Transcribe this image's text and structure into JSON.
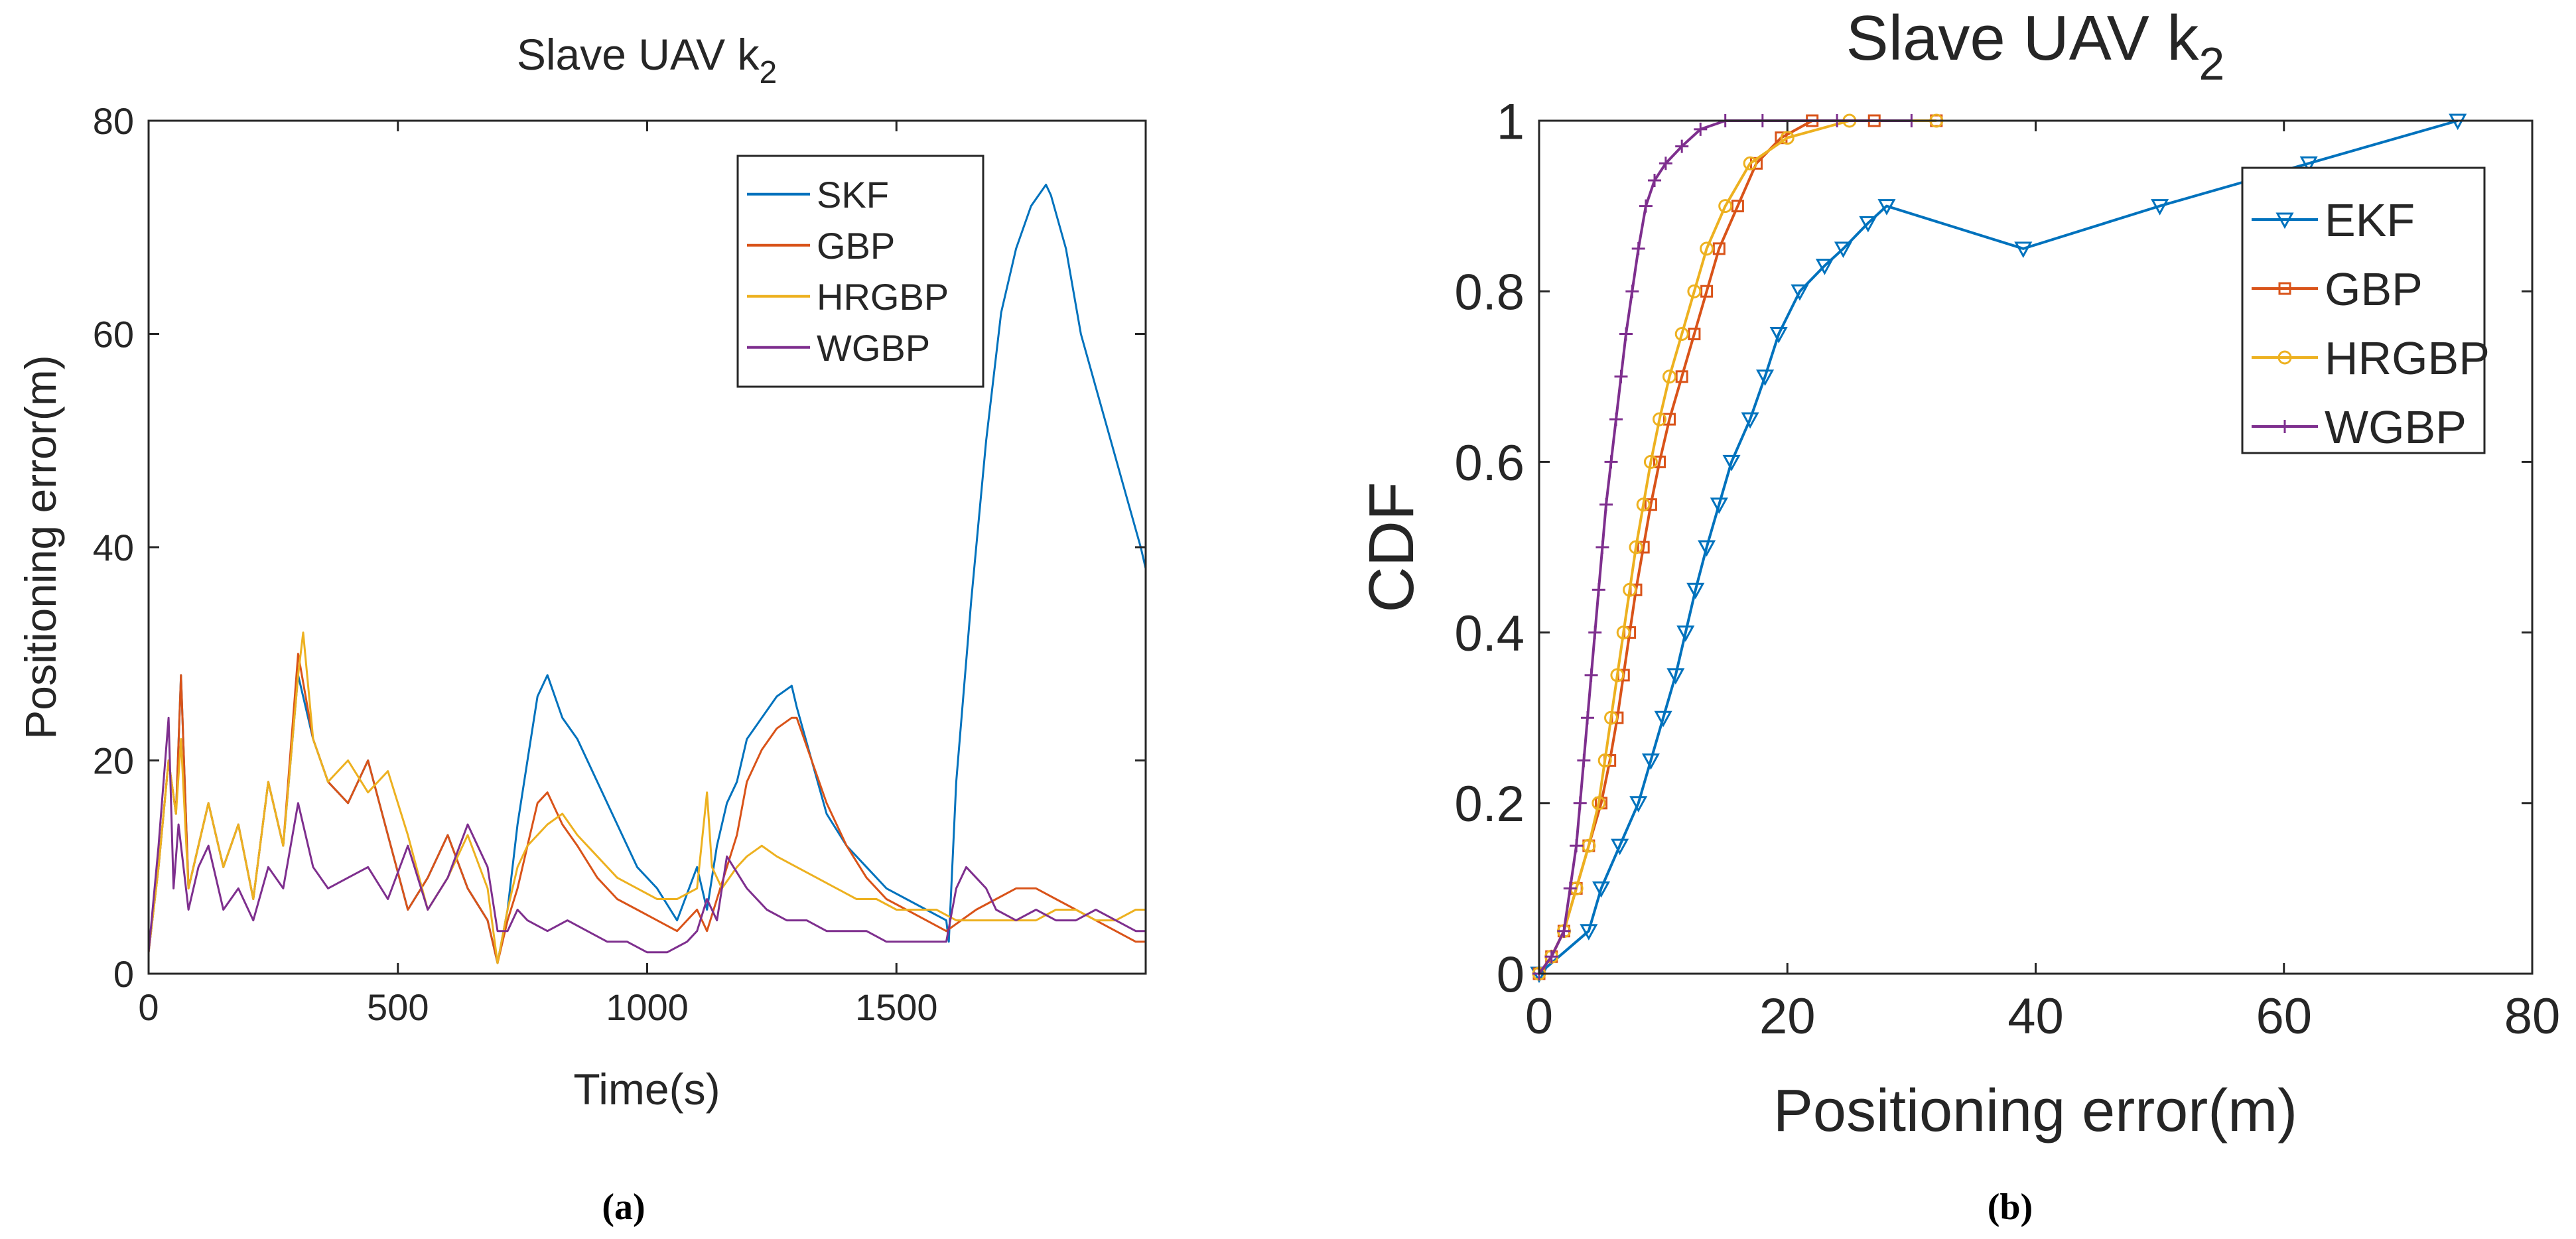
{
  "chart_data": [
    {
      "id": "a",
      "type": "line",
      "title": "Slave UAV k",
      "title_subscript": "2",
      "xlabel": "Time(s)",
      "ylabel": "Positioning error(m)",
      "xlim": [
        0,
        2000
      ],
      "ylim": [
        0,
        80
      ],
      "xticks": [
        0,
        500,
        1000,
        1500
      ],
      "yticks": [
        0,
        20,
        40,
        60,
        80
      ],
      "legend_position": "top-right",
      "caption": "(a)",
      "series": [
        {
          "name": "SKF",
          "color": "#0072BD",
          "x": [
            0,
            20,
            40,
            55,
            65,
            80,
            100,
            120,
            150,
            180,
            210,
            240,
            270,
            300,
            330,
            360,
            400,
            440,
            480,
            520,
            560,
            600,
            640,
            680,
            700,
            720,
            740,
            760,
            780,
            800,
            830,
            860,
            900,
            940,
            980,
            1020,
            1060,
            1100,
            1120,
            1140,
            1160,
            1180,
            1200,
            1230,
            1260,
            1290,
            1300,
            1330,
            1360,
            1400,
            1440,
            1480,
            1520,
            1560,
            1600,
            1605,
            1620,
            1650,
            1680,
            1710,
            1740,
            1770,
            1800,
            1810,
            1840,
            1870,
            1900,
            1930,
            1960,
            1990,
            2000
          ],
          "y": [
            2,
            10,
            20,
            15,
            28,
            8,
            12,
            16,
            10,
            14,
            7,
            18,
            12,
            28,
            22,
            18,
            16,
            20,
            13,
            6,
            9,
            13,
            8,
            5,
            1,
            6,
            14,
            20,
            26,
            28,
            24,
            22,
            18,
            14,
            10,
            8,
            5,
            10,
            6,
            12,
            16,
            18,
            22,
            24,
            26,
            27,
            25,
            20,
            15,
            12,
            10,
            8,
            7,
            6,
            5,
            3,
            18,
            35,
            50,
            62,
            68,
            72,
            74,
            73,
            68,
            60,
            55,
            50,
            45,
            40,
            38
          ]
        },
        {
          "name": "GBP",
          "color": "#D95319",
          "x": [
            0,
            20,
            40,
            55,
            65,
            80,
            100,
            120,
            150,
            180,
            210,
            240,
            270,
            300,
            330,
            360,
            400,
            440,
            480,
            520,
            560,
            600,
            640,
            680,
            700,
            720,
            740,
            760,
            780,
            800,
            830,
            860,
            900,
            940,
            980,
            1020,
            1060,
            1100,
            1120,
            1140,
            1160,
            1180,
            1200,
            1230,
            1260,
            1290,
            1300,
            1330,
            1360,
            1400,
            1440,
            1480,
            1520,
            1560,
            1600,
            1630,
            1660,
            1700,
            1740,
            1780,
            1820,
            1860,
            1900,
            1940,
            1980,
            2000
          ],
          "y": [
            2,
            10,
            20,
            15,
            28,
            8,
            12,
            16,
            10,
            14,
            7,
            18,
            12,
            30,
            22,
            18,
            16,
            20,
            13,
            6,
            9,
            13,
            8,
            5,
            1,
            5,
            8,
            12,
            16,
            17,
            14,
            12,
            9,
            7,
            6,
            5,
            4,
            6,
            4,
            7,
            10,
            13,
            18,
            21,
            23,
            24,
            24,
            20,
            16,
            12,
            9,
            7,
            6,
            5,
            4,
            5,
            6,
            7,
            8,
            8,
            7,
            6,
            5,
            4,
            3,
            3
          ]
        },
        {
          "name": "HRGBP",
          "color": "#EDB120",
          "x": [
            0,
            20,
            40,
            55,
            65,
            80,
            100,
            120,
            150,
            180,
            210,
            240,
            270,
            300,
            310,
            330,
            360,
            400,
            440,
            480,
            520,
            560,
            600,
            640,
            680,
            700,
            720,
            740,
            760,
            780,
            800,
            830,
            860,
            900,
            940,
            980,
            1020,
            1060,
            1100,
            1120,
            1130,
            1150,
            1180,
            1200,
            1230,
            1260,
            1300,
            1340,
            1380,
            1420,
            1460,
            1500,
            1540,
            1580,
            1620,
            1660,
            1700,
            1740,
            1780,
            1820,
            1860,
            1900,
            1940,
            1980,
            2000
          ],
          "y": [
            2,
            10,
            20,
            15,
            22,
            8,
            12,
            16,
            10,
            14,
            7,
            18,
            12,
            28,
            32,
            22,
            18,
            20,
            17,
            19,
            13,
            6,
            9,
            13,
            8,
            1,
            6,
            10,
            12,
            13,
            14,
            15,
            13,
            11,
            9,
            8,
            7,
            7,
            8,
            17,
            10,
            8,
            10,
            11,
            12,
            11,
            10,
            9,
            8,
            7,
            7,
            6,
            6,
            6,
            5,
            5,
            5,
            5,
            5,
            6,
            6,
            5,
            5,
            6,
            6
          ]
        },
        {
          "name": "WGBP",
          "color": "#7E2F8E",
          "x": [
            0,
            20,
            40,
            50,
            60,
            80,
            100,
            120,
            150,
            180,
            210,
            240,
            270,
            300,
            330,
            360,
            400,
            440,
            480,
            520,
            560,
            600,
            640,
            680,
            700,
            720,
            740,
            760,
            800,
            840,
            880,
            920,
            960,
            1000,
            1040,
            1080,
            1100,
            1120,
            1140,
            1160,
            1200,
            1240,
            1280,
            1320,
            1360,
            1400,
            1440,
            1480,
            1520,
            1560,
            1600,
            1620,
            1640,
            1660,
            1680,
            1700,
            1740,
            1780,
            1820,
            1860,
            1900,
            1940,
            1980,
            2000
          ],
          "y": [
            2,
            12,
            24,
            8,
            14,
            6,
            10,
            12,
            6,
            8,
            5,
            10,
            8,
            16,
            10,
            8,
            9,
            10,
            7,
            12,
            6,
            9,
            14,
            10,
            4,
            4,
            6,
            5,
            4,
            5,
            4,
            3,
            3,
            2,
            2,
            3,
            4,
            7,
            5,
            11,
            8,
            6,
            5,
            5,
            4,
            4,
            4,
            3,
            3,
            3,
            3,
            8,
            10,
            9,
            8,
            6,
            5,
            6,
            5,
            5,
            6,
            5,
            4,
            4
          ]
        }
      ]
    },
    {
      "id": "b",
      "type": "line",
      "title": "Slave UAV k",
      "title_subscript": "2",
      "xlabel": "Positioning error(m)",
      "ylabel": "CDF",
      "xlim": [
        0,
        80
      ],
      "ylim": [
        0,
        1
      ],
      "xticks": [
        0,
        20,
        40,
        60,
        80
      ],
      "yticks": [
        0,
        0.2,
        0.4,
        0.6,
        0.8,
        1
      ],
      "legend_position": "top-right",
      "caption": "(b)",
      "series": [
        {
          "name": "EKF",
          "color": "#0072BD",
          "marker": "triangle-down",
          "x": [
            0,
            4.0,
            5.0,
            6.5,
            8.0,
            9.0,
            10.0,
            11.0,
            11.8,
            12.6,
            13.5,
            14.5,
            15.5,
            17.0,
            18.2,
            19.3,
            21.0,
            23.0,
            24.5,
            26.5,
            28.0,
            39.0,
            50.0,
            62.0,
            74.0
          ],
          "y": [
            0,
            0.05,
            0.1,
            0.15,
            0.2,
            0.25,
            0.3,
            0.35,
            0.4,
            0.45,
            0.5,
            0.55,
            0.6,
            0.65,
            0.7,
            0.75,
            0.8,
            0.83,
            0.85,
            0.88,
            0.9,
            0.85,
            0.9,
            0.95,
            1.0
          ]
        },
        {
          "name": "GBP",
          "color": "#D95319",
          "marker": "square",
          "x": [
            0,
            1.0,
            2.0,
            3.0,
            4.0,
            5.0,
            5.7,
            6.3,
            6.8,
            7.3,
            7.8,
            8.4,
            9.0,
            9.7,
            10.5,
            11.5,
            12.5,
            13.5,
            14.5,
            16.0,
            17.5,
            19.5,
            22.0,
            27.0,
            32.0
          ],
          "y": [
            0,
            0.02,
            0.05,
            0.1,
            0.15,
            0.2,
            0.25,
            0.3,
            0.35,
            0.4,
            0.45,
            0.5,
            0.55,
            0.6,
            0.65,
            0.7,
            0.75,
            0.8,
            0.85,
            0.9,
            0.95,
            0.98,
            1.0,
            1.0,
            1.0
          ]
        },
        {
          "name": "HRGBP",
          "color": "#EDB120",
          "marker": "circle",
          "x": [
            0,
            1.0,
            2.0,
            3.0,
            4.0,
            4.8,
            5.3,
            5.8,
            6.3,
            6.8,
            7.3,
            7.8,
            8.4,
            9.0,
            9.7,
            10.5,
            11.5,
            12.5,
            13.5,
            15.0,
            17.0,
            20.0,
            25.0,
            32.0
          ],
          "y": [
            0,
            0.02,
            0.05,
            0.1,
            0.15,
            0.2,
            0.25,
            0.3,
            0.35,
            0.4,
            0.45,
            0.5,
            0.55,
            0.6,
            0.65,
            0.7,
            0.75,
            0.8,
            0.85,
            0.9,
            0.95,
            0.98,
            1.0,
            1.0
          ]
        },
        {
          "name": "WGBP",
          "color": "#7E2F8E",
          "marker": "plus",
          "x": [
            0,
            1.0,
            2.0,
            2.5,
            3.0,
            3.3,
            3.6,
            3.9,
            4.2,
            4.5,
            4.8,
            5.1,
            5.4,
            5.8,
            6.2,
            6.6,
            7.0,
            7.5,
            8.0,
            8.6,
            9.3,
            10.2,
            11.5,
            13.0,
            15.0,
            18.0,
            24.0,
            30.0
          ],
          "y": [
            0,
            0.02,
            0.05,
            0.1,
            0.15,
            0.2,
            0.25,
            0.3,
            0.35,
            0.4,
            0.45,
            0.5,
            0.55,
            0.6,
            0.65,
            0.7,
            0.75,
            0.8,
            0.85,
            0.9,
            0.93,
            0.95,
            0.97,
            0.99,
            1.0,
            1.0,
            1.0,
            1.0
          ]
        }
      ]
    }
  ]
}
